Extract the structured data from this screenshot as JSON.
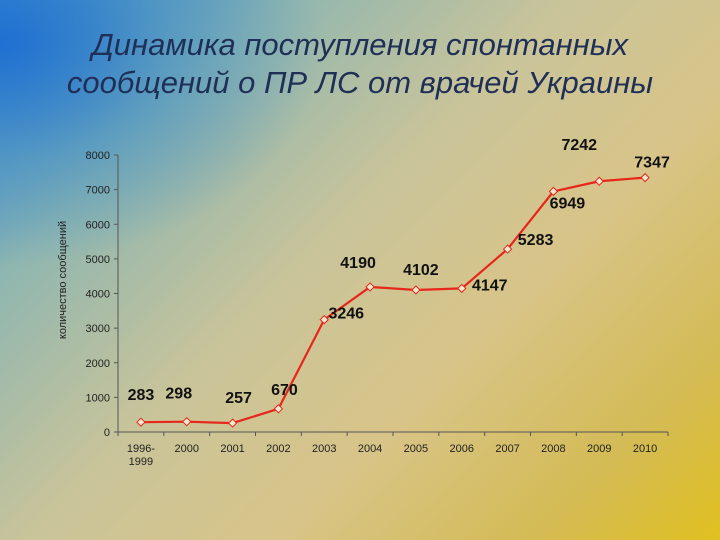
{
  "slide": {
    "title": "Динамика поступления спонтанных сообщений о ПР ЛС от врачей Украины"
  },
  "chart_data": {
    "type": "line",
    "title": "Динамика поступления спонтанных сообщений о ПР ЛС от врачей Украины",
    "xlabel": "",
    "ylabel": "количество сообщений",
    "categories": [
      [
        "1996-",
        "1999"
      ],
      [
        "2000"
      ],
      [
        "2001"
      ],
      [
        "2002"
      ],
      [
        "2003"
      ],
      [
        "2004"
      ],
      [
        "2005"
      ],
      [
        "2006"
      ],
      [
        "2007"
      ],
      [
        "2008"
      ],
      [
        "2009"
      ],
      [
        "2010"
      ]
    ],
    "series": [
      {
        "values": [
          283,
          298,
          257,
          670,
          3246,
          4190,
          4102,
          4147,
          5283,
          6949,
          7242,
          7347
        ]
      }
    ],
    "data_labels": [
      "283",
      "298",
      "257",
      "670",
      "3246",
      "4190",
      "4102",
      "4147",
      "5283",
      "6949",
      "7242",
      "7347"
    ],
    "yticks": [
      "0",
      "1000",
      "2000",
      "3000",
      "4000",
      "5000",
      "6000",
      "7000",
      "8000"
    ],
    "ylim": [
      0,
      8000
    ],
    "grid": false,
    "legend": "none",
    "color": "#e8261a"
  }
}
